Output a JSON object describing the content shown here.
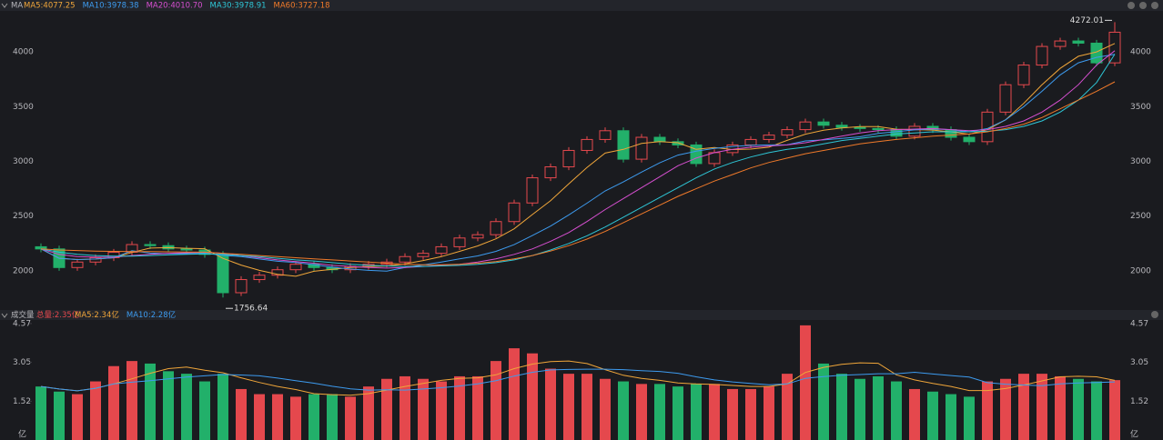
{
  "chart_data": [
    {
      "type": "candlestick",
      "legend_title": "MA",
      "up_color": "#e5484d",
      "down_color": "#22b06a",
      "ylim": [
        1667,
        4358
      ],
      "yticks": [
        2000,
        2500,
        3000,
        3500,
        4000
      ],
      "open": [
        2220,
        2200,
        2030,
        2080,
        2120,
        2170,
        2240,
        2230,
        2200,
        2190,
        2150,
        1800,
        1920,
        1960,
        2010,
        2060,
        2030,
        2010,
        2040,
        2060,
        2080,
        2130,
        2160,
        2220,
        2300,
        2330,
        2450,
        2620,
        2850,
        2950,
        3100,
        3200,
        3280,
        3020,
        3220,
        3180,
        3150,
        2980,
        3080,
        3150,
        3200,
        3240,
        3290,
        3360,
        3330,
        3310,
        3300,
        3290,
        3230,
        3320,
        3290,
        3220,
        3180,
        3450,
        3700,
        3880,
        4050,
        4100,
        4080,
        3900
      ],
      "high": [
        2250,
        2230,
        2110,
        2150,
        2200,
        2270,
        2270,
        2260,
        2230,
        2220,
        2180,
        1950,
        1990,
        2040,
        2090,
        2090,
        2060,
        2070,
        2090,
        2110,
        2160,
        2190,
        2250,
        2330,
        2360,
        2480,
        2650,
        2880,
        2980,
        3130,
        3230,
        3310,
        3310,
        3250,
        3250,
        3210,
        3180,
        3110,
        3180,
        3230,
        3270,
        3320,
        3390,
        3390,
        3360,
        3340,
        3330,
        3320,
        3350,
        3350,
        3320,
        3250,
        3480,
        3730,
        3910,
        4080,
        4130,
        4130,
        4110,
        4272.01
      ],
      "low": [
        2170,
        2000,
        2000,
        2050,
        2090,
        2140,
        2200,
        2170,
        2160,
        2120,
        1756.64,
        1770,
        1890,
        1930,
        1980,
        2000,
        1980,
        1980,
        2010,
        2030,
        2050,
        2100,
        2130,
        2190,
        2270,
        2300,
        2420,
        2590,
        2820,
        2920,
        3070,
        3170,
        2990,
        2990,
        3150,
        3120,
        2950,
        2950,
        3050,
        3120,
        3170,
        3210,
        3260,
        3300,
        3280,
        3270,
        3260,
        3200,
        3200,
        3260,
        3190,
        3150,
        3150,
        3420,
        3670,
        3850,
        4020,
        4050,
        3870,
        3870
      ],
      "close": [
        2200,
        2030,
        2080,
        2120,
        2170,
        2240,
        2230,
        2200,
        2190,
        2150,
        1800,
        1920,
        1960,
        2010,
        2060,
        2030,
        2010,
        2040,
        2060,
        2080,
        2130,
        2160,
        2220,
        2300,
        2330,
        2450,
        2620,
        2850,
        2950,
        3100,
        3200,
        3280,
        3020,
        3220,
        3180,
        3150,
        2980,
        3080,
        3150,
        3200,
        3240,
        3290,
        3360,
        3330,
        3310,
        3300,
        3290,
        3230,
        3320,
        3290,
        3220,
        3180,
        3450,
        3700,
        3880,
        4050,
        4100,
        4080,
        3900,
        4180
      ],
      "series": [
        {
          "label": "MA5:4077.25",
          "color": "#f0a63a",
          "values": [
            2200,
            2115,
            2103,
            2108,
            2120,
            2168,
            2208,
            2212,
            2206,
            2202,
            2114,
            2052,
            2004,
            1968,
            1950,
            1996,
            2014,
            2030,
            2040,
            2044,
            2064,
            2094,
            2130,
            2178,
            2228,
            2292,
            2384,
            2514,
            2640,
            2794,
            2944,
            3076,
            3110,
            3164,
            3180,
            3170,
            3110,
            3126,
            3108,
            3112,
            3130,
            3192,
            3248,
            3284,
            3306,
            3318,
            3318,
            3294,
            3290,
            3286,
            3270,
            3248,
            3290,
            3380,
            3530,
            3700,
            3850,
            3960,
            4000,
            4077.25
          ]
        },
        {
          "label": "MA10:3978.38",
          "color": "#3d9bef",
          "values": [
            2200,
            2115,
            2103,
            2108,
            2120,
            2184,
            2162,
            2158,
            2157,
            2161,
            2141,
            2130,
            2108,
            2087,
            2076,
            2055,
            2033,
            2017,
            2004,
            1997,
            2030,
            2054,
            2080,
            2109,
            2136,
            2178,
            2239,
            2322,
            2409,
            2511,
            2618,
            2730,
            2812,
            2902,
            2987,
            3057,
            3093,
            3118,
            3136,
            3146,
            3150,
            3151,
            3187,
            3196,
            3209,
            3224,
            3255,
            3271,
            3287,
            3296,
            3290,
            3270,
            3300,
            3380,
            3500,
            3640,
            3790,
            3900,
            3950,
            3978.38
          ]
        },
        {
          "label": "MA20:4010.70",
          "color": "#d64fd0",
          "values": [
            2200,
            2150,
            2130,
            2125,
            2125,
            2140,
            2150,
            2160,
            2165,
            2170,
            2160,
            2140,
            2120,
            2100,
            2085,
            2070,
            2050,
            2040,
            2030,
            2025,
            2030,
            2040,
            2050,
            2060,
            2080,
            2110,
            2150,
            2200,
            2270,
            2350,
            2450,
            2560,
            2660,
            2760,
            2860,
            2960,
            3030,
            3080,
            3110,
            3130,
            3140,
            3150,
            3170,
            3200,
            3230,
            3260,
            3280,
            3290,
            3295,
            3300,
            3290,
            3280,
            3290,
            3320,
            3370,
            3450,
            3560,
            3700,
            3880,
            4010.7
          ]
        },
        {
          "label": "MA30:3978.91",
          "color": "#2ec6d6",
          "values": [
            2200,
            2170,
            2150,
            2140,
            2135,
            2135,
            2140,
            2145,
            2150,
            2155,
            2150,
            2140,
            2130,
            2115,
            2100,
            2090,
            2075,
            2060,
            2050,
            2045,
            2040,
            2040,
            2045,
            2050,
            2060,
            2075,
            2100,
            2140,
            2190,
            2250,
            2320,
            2400,
            2490,
            2580,
            2670,
            2760,
            2850,
            2930,
            2990,
            3040,
            3080,
            3110,
            3130,
            3160,
            3190,
            3210,
            3230,
            3250,
            3260,
            3270,
            3270,
            3270,
            3275,
            3290,
            3320,
            3370,
            3450,
            3560,
            3720,
            3978.91
          ]
        },
        {
          "label": "MA60:3727.18",
          "color": "#f07a2a",
          "values": [
            2200,
            2190,
            2185,
            2180,
            2178,
            2176,
            2175,
            2174,
            2172,
            2170,
            2160,
            2150,
            2140,
            2130,
            2120,
            2110,
            2100,
            2090,
            2080,
            2070,
            2060,
            2055,
            2055,
            2060,
            2070,
            2085,
            2110,
            2140,
            2180,
            2230,
            2290,
            2360,
            2440,
            2520,
            2600,
            2680,
            2750,
            2820,
            2880,
            2940,
            2990,
            3030,
            3070,
            3100,
            3130,
            3160,
            3180,
            3200,
            3215,
            3230,
            3240,
            3250,
            3270,
            3300,
            3340,
            3400,
            3480,
            3560,
            3640,
            3727.18
          ]
        }
      ]
    },
    {
      "type": "bar",
      "title": "成交量",
      "total_label": "总量:2.35亿",
      "y_unit": "亿",
      "ylim": [
        0,
        4.71
      ],
      "yticks": [
        1.52,
        3.05,
        4.57
      ],
      "values": [
        2.1,
        1.9,
        1.8,
        2.3,
        2.9,
        3.1,
        3.0,
        2.7,
        2.6,
        2.3,
        2.6,
        2.0,
        1.8,
        1.8,
        1.7,
        1.8,
        1.8,
        1.7,
        2.1,
        2.4,
        2.5,
        2.4,
        2.3,
        2.5,
        2.5,
        3.1,
        3.6,
        3.4,
        2.8,
        2.6,
        2.6,
        2.4,
        2.3,
        2.2,
        2.2,
        2.1,
        2.2,
        2.2,
        2.0,
        2.0,
        2.1,
        2.6,
        4.5,
        3.0,
        2.6,
        2.4,
        2.5,
        2.3,
        2.0,
        1.9,
        1.8,
        1.7,
        2.3,
        2.4,
        2.6,
        2.6,
        2.5,
        2.4,
        2.3,
        2.35
      ],
      "series": [
        {
          "label": "MA5:2.34亿",
          "color": "#f0a63a",
          "values": [
            2.1,
            2.0,
            1.93,
            2.03,
            2.2,
            2.4,
            2.62,
            2.8,
            2.86,
            2.74,
            2.64,
            2.44,
            2.26,
            2.1,
            1.98,
            1.82,
            1.78,
            1.76,
            1.82,
            1.96,
            2.1,
            2.22,
            2.34,
            2.42,
            2.44,
            2.56,
            2.8,
            2.98,
            3.08,
            3.1,
            3.0,
            2.76,
            2.54,
            2.42,
            2.34,
            2.24,
            2.2,
            2.18,
            2.14,
            2.1,
            2.1,
            2.2,
            2.65,
            2.85,
            2.97,
            3.03,
            3.01,
            2.56,
            2.36,
            2.22,
            2.1,
            1.94,
            1.94,
            2.02,
            2.16,
            2.32,
            2.48,
            2.5,
            2.48,
            2.34
          ]
        },
        {
          "label": "MA10:2.28亿",
          "color": "#3d9bef",
          "values": [
            2.1,
            2.0,
            1.93,
            2.03,
            2.2,
            2.27,
            2.33,
            2.4,
            2.47,
            2.52,
            2.57,
            2.55,
            2.52,
            2.43,
            2.33,
            2.23,
            2.11,
            2.01,
            1.96,
            1.97,
            1.96,
            2.0,
            2.05,
            2.12,
            2.2,
            2.33,
            2.51,
            2.66,
            2.75,
            2.77,
            2.78,
            2.78,
            2.76,
            2.72,
            2.69,
            2.62,
            2.48,
            2.36,
            2.28,
            2.22,
            2.17,
            2.2,
            2.42,
            2.49,
            2.54,
            2.57,
            2.6,
            2.6,
            2.66,
            2.59,
            2.53,
            2.47,
            2.25,
            2.19,
            2.16,
            2.13,
            2.2,
            2.24,
            2.26,
            2.28
          ]
        }
      ]
    }
  ]
}
